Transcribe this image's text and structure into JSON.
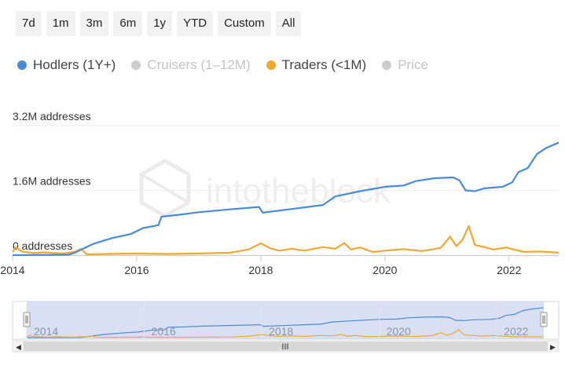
{
  "range_buttons": [
    "7d",
    "1m",
    "3m",
    "6m",
    "1y",
    "YTD",
    "Custom",
    "All"
  ],
  "legend": [
    {
      "label": "Hodlers (1Y+)",
      "color": "#4a8bd6",
      "active": true
    },
    {
      "label": "Cruisers (1–12M)",
      "color": "#cccccc",
      "active": false
    },
    {
      "label": "Traders (<1M)",
      "color": "#f0a830",
      "active": true
    },
    {
      "label": "Price",
      "color": "#cccccc",
      "active": false
    }
  ],
  "watermark": "intotheblock",
  "chart_data": {
    "type": "line",
    "title": "",
    "xlabel": "",
    "ylabel": "",
    "xlim": [
      2014.0,
      2022.8
    ],
    "ylim": [
      0,
      3200000
    ],
    "y_ticks": [
      {
        "value": 0,
        "label": "0 addresses"
      },
      {
        "value": 1600000,
        "label": "1.6M addresses"
      },
      {
        "value": 3200000,
        "label": "3.2M addresses"
      }
    ],
    "x_ticks": [
      {
        "value": 2014,
        "label": "2014"
      },
      {
        "value": 2016,
        "label": "2016"
      },
      {
        "value": 2018,
        "label": "2018"
      },
      {
        "value": 2020,
        "label": "2020"
      },
      {
        "value": 2022,
        "label": "2022"
      }
    ],
    "series": [
      {
        "name": "Hodlers (1Y+)",
        "color": "#4a8bd6",
        "points": [
          [
            2014.0,
            0
          ],
          [
            2014.9,
            10000
          ],
          [
            2015.0,
            60000
          ],
          [
            2015.3,
            280000
          ],
          [
            2015.6,
            420000
          ],
          [
            2015.9,
            520000
          ],
          [
            2016.1,
            670000
          ],
          [
            2016.35,
            740000
          ],
          [
            2016.4,
            950000
          ],
          [
            2016.7,
            1000000
          ],
          [
            2017.0,
            1060000
          ],
          [
            2017.5,
            1130000
          ],
          [
            2017.97,
            1190000
          ],
          [
            2018.03,
            1050000
          ],
          [
            2018.5,
            1140000
          ],
          [
            2019.0,
            1240000
          ],
          [
            2019.2,
            1450000
          ],
          [
            2019.6,
            1580000
          ],
          [
            2020.0,
            1690000
          ],
          [
            2020.3,
            1720000
          ],
          [
            2020.5,
            1830000
          ],
          [
            2020.8,
            1900000
          ],
          [
            2021.1,
            1920000
          ],
          [
            2021.2,
            1850000
          ],
          [
            2021.3,
            1600000
          ],
          [
            2021.45,
            1580000
          ],
          [
            2021.6,
            1650000
          ],
          [
            2021.9,
            1690000
          ],
          [
            2022.05,
            1800000
          ],
          [
            2022.15,
            2050000
          ],
          [
            2022.3,
            2150000
          ],
          [
            2022.45,
            2500000
          ],
          [
            2022.6,
            2650000
          ],
          [
            2022.8,
            2780000
          ]
        ]
      },
      {
        "name": "Traders (<1M)",
        "color": "#f0a830",
        "points": [
          [
            2014.0,
            80000
          ],
          [
            2014.05,
            200000
          ],
          [
            2014.15,
            90000
          ],
          [
            2014.35,
            50000
          ],
          [
            2014.5,
            70000
          ],
          [
            2014.8,
            40000
          ],
          [
            2015.0,
            80000
          ],
          [
            2015.1,
            150000
          ],
          [
            2015.2,
            20000
          ],
          [
            2015.5,
            30000
          ],
          [
            2016.0,
            40000
          ],
          [
            2016.5,
            30000
          ],
          [
            2017.0,
            40000
          ],
          [
            2017.5,
            60000
          ],
          [
            2017.8,
            140000
          ],
          [
            2018.0,
            290000
          ],
          [
            2018.15,
            170000
          ],
          [
            2018.3,
            110000
          ],
          [
            2018.5,
            160000
          ],
          [
            2018.7,
            110000
          ],
          [
            2019.0,
            200000
          ],
          [
            2019.2,
            160000
          ],
          [
            2019.35,
            300000
          ],
          [
            2019.45,
            140000
          ],
          [
            2019.6,
            190000
          ],
          [
            2019.8,
            80000
          ],
          [
            2020.0,
            110000
          ],
          [
            2020.3,
            150000
          ],
          [
            2020.6,
            100000
          ],
          [
            2020.9,
            180000
          ],
          [
            2021.05,
            460000
          ],
          [
            2021.15,
            220000
          ],
          [
            2021.25,
            380000
          ],
          [
            2021.35,
            720000
          ],
          [
            2021.45,
            250000
          ],
          [
            2021.6,
            200000
          ],
          [
            2021.75,
            140000
          ],
          [
            2021.95,
            190000
          ],
          [
            2022.1,
            130000
          ],
          [
            2022.25,
            80000
          ],
          [
            2022.5,
            90000
          ],
          [
            2022.8,
            60000
          ]
        ]
      }
    ],
    "navigator": {
      "x_ticks": [
        {
          "value": 2014,
          "label": "2014"
        },
        {
          "value": 2016,
          "label": "2016"
        },
        {
          "value": 2018,
          "label": "2018"
        },
        {
          "value": 2020,
          "label": "2020"
        },
        {
          "value": 2022,
          "label": "2022"
        }
      ],
      "handle_glyph": "III",
      "scroll_left": "◀",
      "scroll_right": "▶"
    }
  }
}
